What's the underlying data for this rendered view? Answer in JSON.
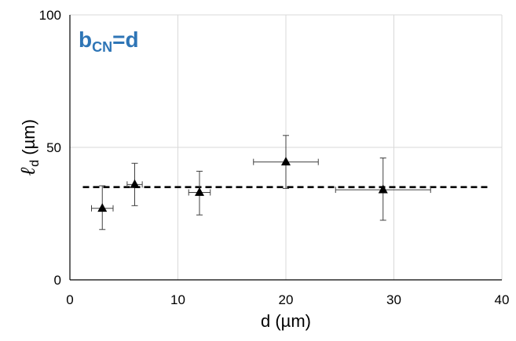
{
  "chart_data": {
    "type": "scatter",
    "title": "",
    "annotation": {
      "main": "b",
      "subscript": "CN",
      "suffix": "=d",
      "color": "#2e75b6"
    },
    "xlabel": "d (µm)",
    "ylabel": {
      "main": "ℓ",
      "subscript": "d",
      "suffix": " (µm)"
    },
    "xlim": [
      0,
      40
    ],
    "ylim": [
      0,
      100
    ],
    "xticks": [
      "0",
      "10",
      "20",
      "30",
      "40"
    ],
    "yticks": [
      "0",
      "50",
      "100"
    ],
    "xtick_values": [
      0,
      10,
      20,
      30,
      40
    ],
    "ytick_values": [
      0,
      50,
      100
    ],
    "grid": true,
    "series": [
      {
        "points": [
          {
            "x": 3,
            "y": 27,
            "xerr": 1,
            "yerr_low": 8,
            "yerr_high": 8.5
          },
          {
            "x": 6,
            "y": 36,
            "xerr": 0.7,
            "yerr_low": 8,
            "yerr_high": 8
          },
          {
            "x": 12,
            "y": 33,
            "xerr": 1,
            "yerr_low": 8.5,
            "yerr_high": 8
          },
          {
            "x": 20,
            "y": 44.5,
            "xerr": 3,
            "yerr_low": 10,
            "yerr_high": 10
          },
          {
            "x": 29,
            "y": 34,
            "xerr": 4.4,
            "yerr_low": 11.5,
            "yerr_high": 12
          }
        ],
        "marker": "triangle",
        "color": "#000000"
      }
    ],
    "reference_line": {
      "y": 35,
      "style": "dashed",
      "color": "#000000"
    }
  }
}
